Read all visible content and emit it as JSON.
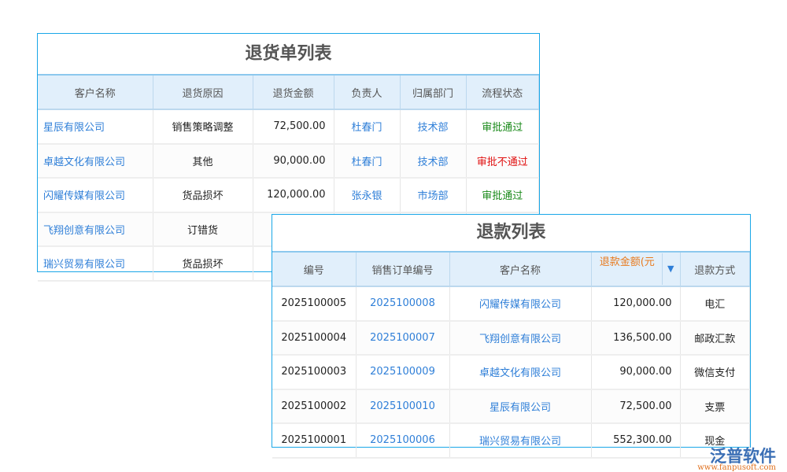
{
  "returns": {
    "title": "退货单列表",
    "headers": [
      "客户名称",
      "退货原因",
      "退货金额",
      "负责人",
      "归属部门",
      "流程状态"
    ],
    "rows": [
      [
        "星辰有限公司",
        "销售策略调整",
        "72,500.00",
        "杜春门",
        "技术部",
        "审批通过"
      ],
      [
        "卓越文化有限公司",
        "其他",
        "90,000.00",
        "杜春门",
        "技术部",
        "审批不通过"
      ],
      [
        "闪耀传媒有限公司",
        "货品损坏",
        "120,000.00",
        "张永银",
        "市场部",
        "审批通过"
      ],
      [
        "飞翔创意有限公司",
        "订错货",
        "",
        "",
        "",
        ""
      ],
      [
        "瑞兴贸易有限公司",
        "货品损坏",
        "",
        "",
        "",
        ""
      ]
    ]
  },
  "refunds": {
    "title": "退款列表",
    "headers": [
      "编号",
      "销售订单编号",
      "客户名称",
      "退款金额(元",
      "退款方式"
    ],
    "rows": [
      [
        "2025100005",
        "2025100008",
        "闪耀传媒有限公司",
        "120,000.00",
        "电汇"
      ],
      [
        "2025100004",
        "2025100007",
        "飞翔创意有限公司",
        "136,500.00",
        "邮政汇款"
      ],
      [
        "2025100003",
        "2025100009",
        "卓越文化有限公司",
        "90,000.00",
        "微信支付"
      ],
      [
        "2025100002",
        "2025100010",
        "星辰有限公司",
        "72,500.00",
        "支票"
      ],
      [
        "2025100001",
        "2025100006",
        "瑞兴贸易有限公司",
        "552,300.00",
        "现金"
      ]
    ]
  },
  "logo": {
    "name": "泛普软件",
    "url": "www.fanpusoft.com"
  },
  "colors": {
    "link": "#2f7fd8",
    "approved": "#1a8a1a",
    "rejected": "#e01010",
    "sorted_header": "#e87a1e",
    "border": "#1aa7e8"
  }
}
